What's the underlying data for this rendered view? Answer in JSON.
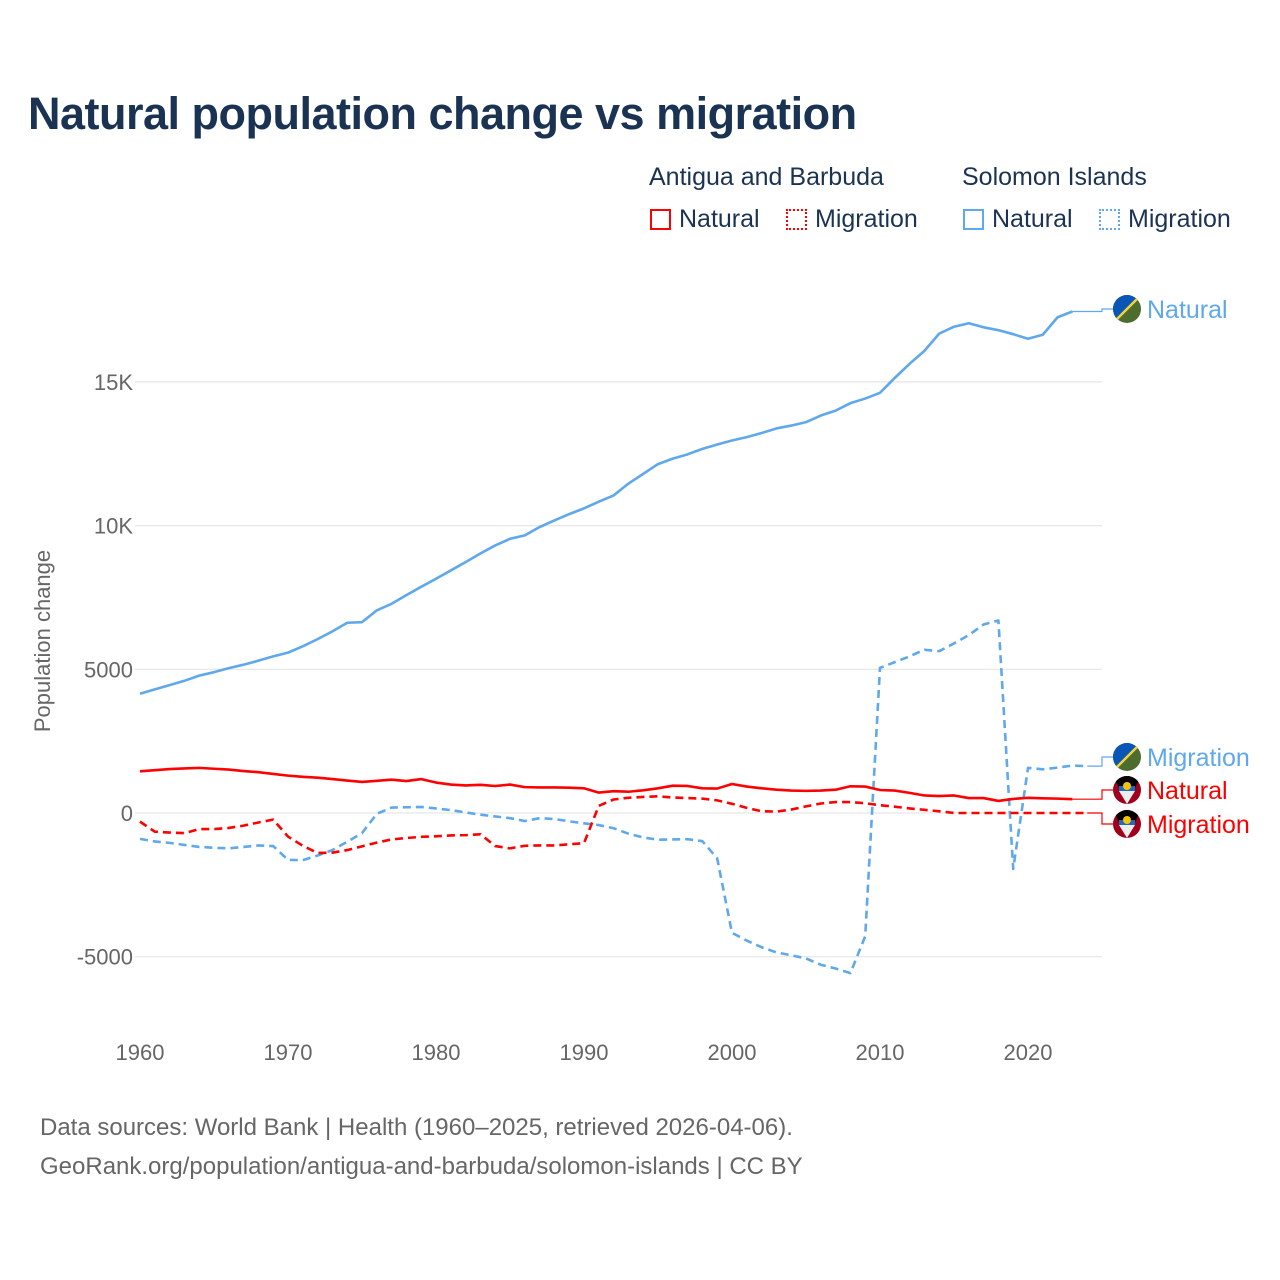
{
  "chart_data": {
    "type": "line",
    "title": "Natural population change vs migration",
    "xlabel": "",
    "ylabel": "Population change",
    "xlim": [
      1960,
      2025
    ],
    "ylim": [
      -7500,
      19000
    ],
    "x_ticks": [
      1960,
      1970,
      1980,
      1990,
      2000,
      2010,
      2020
    ],
    "x_tick_labels": [
      "1960",
      "1970",
      "1980",
      "1990",
      "2000",
      "2010",
      "2020"
    ],
    "y_ticks": [
      -5000,
      0,
      5000,
      10000,
      15000
    ],
    "y_tick_labels": [
      "-5000",
      "0",
      "5000",
      "10K",
      "15K"
    ],
    "grid": true,
    "legend": {
      "placement": "top-right",
      "groups": [
        {
          "country": "Antigua and Barbuda",
          "items": [
            "Natural",
            "Migration"
          ]
        },
        {
          "country": "Solomon Islands",
          "items": [
            "Natural",
            "Migration"
          ]
        }
      ]
    },
    "colors": {
      "antigua": "#ff0000",
      "solomon": "#5fa8ec"
    },
    "series": [
      {
        "name": "Solomon Islands Natural",
        "label": "Natural",
        "country": "Solomon Islands",
        "style": "solid",
        "start": 1960,
        "values": [
          4150,
          4300,
          4450,
          4600,
          4780,
          4900,
          5040,
          5160,
          5300,
          5450,
          5580,
          5800,
          6050,
          6320,
          6620,
          6640,
          7050,
          7280,
          7580,
          7870,
          8150,
          8440,
          8730,
          9030,
          9310,
          9540,
          9660,
          9950,
          10180,
          10400,
          10600,
          10830,
          11050,
          11460,
          11800,
          12140,
          12330,
          12480,
          12670,
          12820,
          12960,
          13080,
          13220,
          13380,
          13480,
          13600,
          13830,
          14000,
          14260,
          14420,
          14620,
          15140,
          15630,
          16080,
          16680,
          16920,
          17040,
          16900,
          16800,
          16660,
          16500,
          16640,
          17250,
          17450
        ]
      },
      {
        "name": "Solomon Islands Migration",
        "label": "Migration",
        "country": "Solomon Islands",
        "style": "dashed",
        "start": 1960,
        "values": [
          -900,
          -990,
          -1040,
          -1110,
          -1180,
          -1210,
          -1230,
          -1180,
          -1130,
          -1150,
          -1630,
          -1640,
          -1480,
          -1290,
          -1000,
          -700,
          -30,
          190,
          200,
          210,
          160,
          100,
          20,
          -60,
          -120,
          -180,
          -280,
          -180,
          -210,
          -290,
          -360,
          -420,
          -530,
          -720,
          -850,
          -930,
          -920,
          -910,
          -980,
          -1580,
          -4170,
          -4440,
          -4670,
          -4850,
          -4950,
          -5060,
          -5280,
          -5410,
          -5570,
          -4290,
          5050,
          5250,
          5450,
          5680,
          5630,
          5900,
          6190,
          6560,
          6700,
          -1950,
          1570,
          1520,
          1580,
          1650,
          1630
        ]
      },
      {
        "name": "Antigua and Barbuda Natural",
        "label": "Natural",
        "country": "Antigua and Barbuda",
        "style": "solid",
        "start": 1960,
        "values": [
          1450,
          1490,
          1530,
          1550,
          1570,
          1540,
          1510,
          1460,
          1420,
          1360,
          1300,
          1260,
          1230,
          1180,
          1130,
          1080,
          1120,
          1160,
          1110,
          1180,
          1060,
          990,
          960,
          980,
          940,
          990,
          900,
          890,
          890,
          880,
          860,
          710,
          760,
          740,
          790,
          860,
          950,
          940,
          860,
          850,
          1010,
          920,
          860,
          810,
          780,
          770,
          780,
          810,
          930,
          920,
          800,
          780,
          700,
          610,
          590,
          610,
          520,
          520,
          420,
          490,
          530,
          510,
          500,
          480
        ]
      },
      {
        "name": "Antigua and Barbuda Migration",
        "label": "Migration",
        "country": "Antigua and Barbuda",
        "style": "dashed",
        "start": 1960,
        "values": [
          -300,
          -650,
          -680,
          -700,
          -560,
          -560,
          -520,
          -440,
          -330,
          -230,
          -820,
          -1140,
          -1390,
          -1380,
          -1290,
          -1160,
          -1030,
          -920,
          -870,
          -830,
          -810,
          -780,
          -770,
          -740,
          -1150,
          -1230,
          -1140,
          -1130,
          -1130,
          -1090,
          -1050,
          250,
          470,
          530,
          560,
          580,
          540,
          520,
          500,
          440,
          320,
          180,
          60,
          50,
          120,
          230,
          330,
          380,
          380,
          340,
          270,
          220,
          160,
          110,
          60,
          0,
          0,
          0,
          0,
          0,
          0,
          0,
          0,
          0,
          0
        ]
      }
    ]
  },
  "source": {
    "line1": "Data sources: World Bank | Health (1960–2025, retrieved 2026-04-06).",
    "line2": "GeoRank.org/population/antigua-and-barbuda/solomon-islands | CC BY"
  }
}
